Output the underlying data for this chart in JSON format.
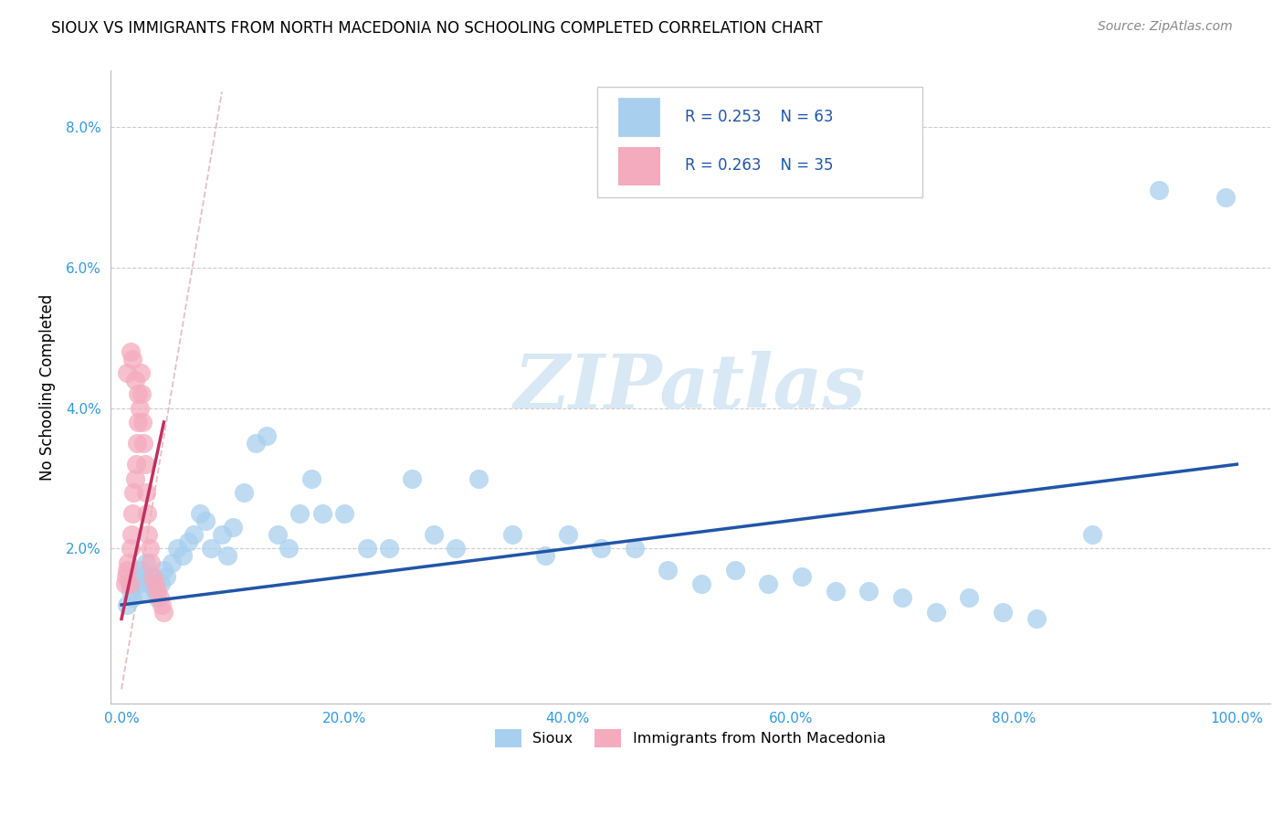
{
  "title": "SIOUX VS IMMIGRANTS FROM NORTH MACEDONIA NO SCHOOLING COMPLETED CORRELATION CHART",
  "source": "Source: ZipAtlas.com",
  "ylabel_label": "No Schooling Completed",
  "legend_label1": "Sioux",
  "legend_label2": "Immigrants from North Macedonia",
  "r1": 0.253,
  "n1": 63,
  "r2": 0.263,
  "n2": 35,
  "xlim_min": -0.01,
  "xlim_max": 1.03,
  "ylim_min": -0.002,
  "ylim_max": 0.088,
  "xticks": [
    0.0,
    0.2,
    0.4,
    0.6,
    0.8,
    1.0
  ],
  "yticks": [
    0.0,
    0.02,
    0.04,
    0.06,
    0.08
  ],
  "xtick_labels": [
    "0.0%",
    "20.0%",
    "40.0%",
    "60.0%",
    "80.0%",
    "100.0%"
  ],
  "ytick_labels": [
    "",
    "2.0%",
    "4.0%",
    "6.0%",
    "8.0%"
  ],
  "color_blue": "#A8CFEE",
  "color_pink": "#F4ABBE",
  "line_blue": "#2055A8",
  "line_pink": "#C03060",
  "line_diag_color": "#DDB0B8",
  "background": "#FFFFFF",
  "grid_color": "#CCCCCC",
  "axis_color": "#BBBBBB",
  "tick_label_color": "#3399DD",
  "watermark_color": "#D8E8F4",
  "blue_trend_y0": 0.012,
  "blue_trend_y1": 0.032,
  "pink_trend_x0": 0.0,
  "pink_trend_y0": 0.01,
  "pink_trend_x1": 0.038,
  "pink_trend_y1": 0.038,
  "sioux_x": [
    0.005,
    0.007,
    0.008,
    0.01,
    0.012,
    0.015,
    0.017,
    0.018,
    0.02,
    0.022,
    0.025,
    0.028,
    0.03,
    0.032,
    0.035,
    0.038,
    0.04,
    0.045,
    0.05,
    0.055,
    0.06,
    0.065,
    0.07,
    0.075,
    0.08,
    0.09,
    0.095,
    0.1,
    0.11,
    0.12,
    0.13,
    0.14,
    0.15,
    0.16,
    0.17,
    0.18,
    0.2,
    0.22,
    0.24,
    0.26,
    0.28,
    0.3,
    0.32,
    0.35,
    0.38,
    0.4,
    0.43,
    0.46,
    0.49,
    0.52,
    0.55,
    0.58,
    0.61,
    0.64,
    0.67,
    0.7,
    0.73,
    0.76,
    0.79,
    0.82,
    0.87,
    0.93,
    0.99
  ],
  "sioux_y": [
    0.012,
    0.015,
    0.014,
    0.013,
    0.016,
    0.015,
    0.017,
    0.014,
    0.016,
    0.018,
    0.015,
    0.016,
    0.014,
    0.013,
    0.015,
    0.017,
    0.016,
    0.018,
    0.02,
    0.019,
    0.021,
    0.022,
    0.025,
    0.024,
    0.02,
    0.022,
    0.019,
    0.023,
    0.028,
    0.035,
    0.036,
    0.022,
    0.02,
    0.025,
    0.03,
    0.025,
    0.025,
    0.02,
    0.02,
    0.03,
    0.022,
    0.02,
    0.03,
    0.022,
    0.019,
    0.022,
    0.02,
    0.02,
    0.017,
    0.015,
    0.017,
    0.015,
    0.016,
    0.014,
    0.014,
    0.013,
    0.011,
    0.013,
    0.011,
    0.01,
    0.022,
    0.071,
    0.07
  ],
  "mac_x": [
    0.003,
    0.004,
    0.005,
    0.006,
    0.007,
    0.008,
    0.009,
    0.01,
    0.011,
    0.012,
    0.013,
    0.014,
    0.015,
    0.016,
    0.017,
    0.018,
    0.019,
    0.02,
    0.021,
    0.022,
    0.023,
    0.024,
    0.025,
    0.026,
    0.028,
    0.03,
    0.032,
    0.034,
    0.036,
    0.038,
    0.005,
    0.008,
    0.01,
    0.012,
    0.015
  ],
  "mac_y": [
    0.015,
    0.016,
    0.017,
    0.018,
    0.015,
    0.02,
    0.022,
    0.025,
    0.028,
    0.03,
    0.032,
    0.035,
    0.038,
    0.04,
    0.045,
    0.042,
    0.038,
    0.035,
    0.032,
    0.028,
    0.025,
    0.022,
    0.02,
    0.018,
    0.016,
    0.015,
    0.014,
    0.013,
    0.012,
    0.011,
    0.045,
    0.048,
    0.047,
    0.044,
    0.042
  ]
}
